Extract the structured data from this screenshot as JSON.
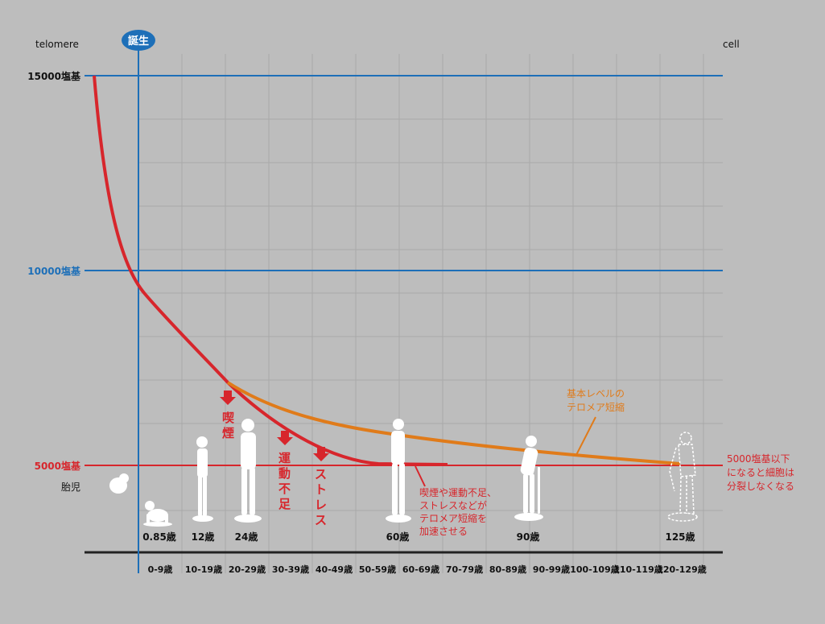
{
  "header": {
    "left_label": "telomere",
    "right_label": "cell",
    "birth_badge": "誕生"
  },
  "y_levels": [
    {
      "label": "15000塩基",
      "value": 15000,
      "color": "#1d6fb8"
    },
    {
      "label": "10000塩基",
      "value": 10000,
      "color": "#1d6fb8"
    },
    {
      "label": "5000塩基",
      "value": 5000,
      "color": "#d7262c"
    }
  ],
  "age_ranges": [
    "0-9歳",
    "10-19歳",
    "20-29歳",
    "30-39歳",
    "40-49歳",
    "50-59歳",
    "60-69歳",
    "70-79歳",
    "80-89歳",
    "90-99歳",
    "100-109歳",
    "110-119歳",
    "120-129歳"
  ],
  "figure_ages": [
    {
      "label": "0.85歳"
    },
    {
      "label": "12歳"
    },
    {
      "label": "24歳"
    },
    {
      "label": "60歳"
    },
    {
      "label": "90歳"
    },
    {
      "label": "125歳"
    }
  ],
  "fetus_label": "胎児",
  "factors": [
    {
      "text": "喫煙"
    },
    {
      "text": "運動不足"
    },
    {
      "text": "ストレス"
    }
  ],
  "annotations": {
    "orange_lines": [
      "基本レベルの",
      "テロメア短縮"
    ],
    "red_lines": [
      "喫煙や運動不足、",
      "ストレスなどが",
      "テロメア短縮を",
      "加速させる"
    ],
    "threshold_lines": [
      "5000塩基以下",
      "になると細胞は",
      "分裂しなくなる"
    ]
  },
  "colors": {
    "blue": "#1d6fb8",
    "red": "#d7262c",
    "orange": "#e07b1a",
    "background": "#bdbdbd",
    "grid": "#a9a9a9",
    "baseline": "#222222",
    "figure": "#ffffff"
  },
  "icons": {
    "arrow": "down-arrow-icon",
    "figure": "human-silhouette-icon"
  }
}
